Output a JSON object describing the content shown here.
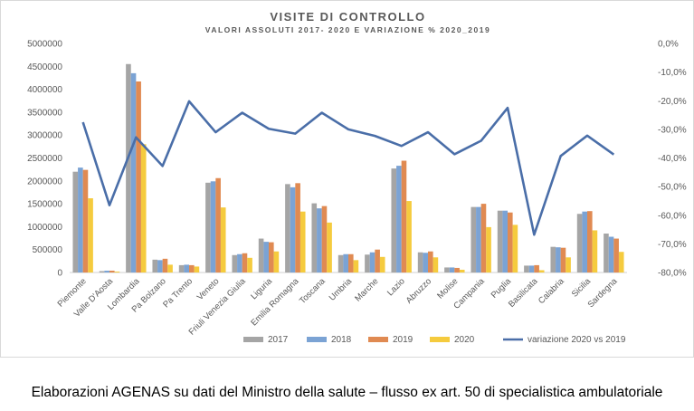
{
  "chart_data": {
    "type": "bar",
    "title": "VISITE DI CONTROLLO",
    "subtitle": "VALORI ASSOLUTI 2017- 2020 E VARIAZIONE % 2020_2019",
    "categories": [
      "Piemonte",
      "Valle D'Aosta",
      "Lombardia",
      "Pa Bolzano",
      "Pa Trento",
      "Veneto",
      "Friuli Venezia Giulia",
      "Liguria",
      "Emilia Romagna",
      "Toscana",
      "Umbria",
      "Marche",
      "Lazio",
      "Abruzzo",
      "Molise",
      "Campania",
      "Puglia",
      "Basilicata",
      "Calabria",
      "Sicilia",
      "Sardegna"
    ],
    "series": [
      {
        "name": "2017",
        "color": "#a5a5a5",
        "values": [
          2200000,
          30000,
          4550000,
          280000,
          160000,
          1960000,
          380000,
          740000,
          1930000,
          1510000,
          380000,
          390000,
          2270000,
          440000,
          110000,
          1430000,
          1350000,
          150000,
          560000,
          1280000,
          850000
        ]
      },
      {
        "name": "2018",
        "color": "#7ba3d4",
        "values": [
          2290000,
          40000,
          4350000,
          270000,
          170000,
          1990000,
          400000,
          670000,
          1860000,
          1400000,
          400000,
          440000,
          2330000,
          430000,
          110000,
          1430000,
          1350000,
          150000,
          550000,
          1330000,
          780000
        ]
      },
      {
        "name": "2019",
        "color": "#e08a52",
        "values": [
          2240000,
          40000,
          4170000,
          300000,
          160000,
          2060000,
          420000,
          660000,
          1950000,
          1450000,
          400000,
          500000,
          2440000,
          460000,
          100000,
          1500000,
          1310000,
          160000,
          540000,
          1340000,
          740000
        ]
      },
      {
        "name": "2020",
        "color": "#f5cb3e",
        "values": [
          1620000,
          20000,
          2800000,
          170000,
          130000,
          1420000,
          320000,
          460000,
          1330000,
          1090000,
          270000,
          340000,
          1560000,
          330000,
          60000,
          990000,
          1040000,
          50000,
          330000,
          920000,
          450000
        ]
      }
    ],
    "line_series": {
      "name": "variazione 2020 vs 2019",
      "color": "#4a6ea8",
      "values": [
        -27.5,
        -56.5,
        -32.8,
        -42.8,
        -20.2,
        -31.0,
        -24.2,
        -29.8,
        -31.5,
        -24.2,
        -30.0,
        -32.3,
        -35.8,
        -31.0,
        -38.7,
        -34.0,
        -22.5,
        -66.8,
        -39.3,
        -32.2,
        -38.8
      ]
    },
    "ylim": [
      0,
      5000000
    ],
    "y_ticks": [
      "0",
      "500000",
      "1000000",
      "1500000",
      "2000000",
      "2500000",
      "3000000",
      "3500000",
      "4000000",
      "4500000",
      "5000000"
    ],
    "y2lim": [
      -80,
      0
    ],
    "y2_ticks": [
      "-80,0%",
      "-70,0%",
      "-60,0%",
      "-50,0%",
      "-40,0%",
      "-30,0%",
      "-20,0%",
      "-10,0%",
      "0,0%"
    ],
    "legend_position": "bottom",
    "grid": false
  },
  "caption": "Elaborazioni AGENAS su dati del Ministro della salute – flusso ex art. 50 di specialistica ambulatoriale"
}
